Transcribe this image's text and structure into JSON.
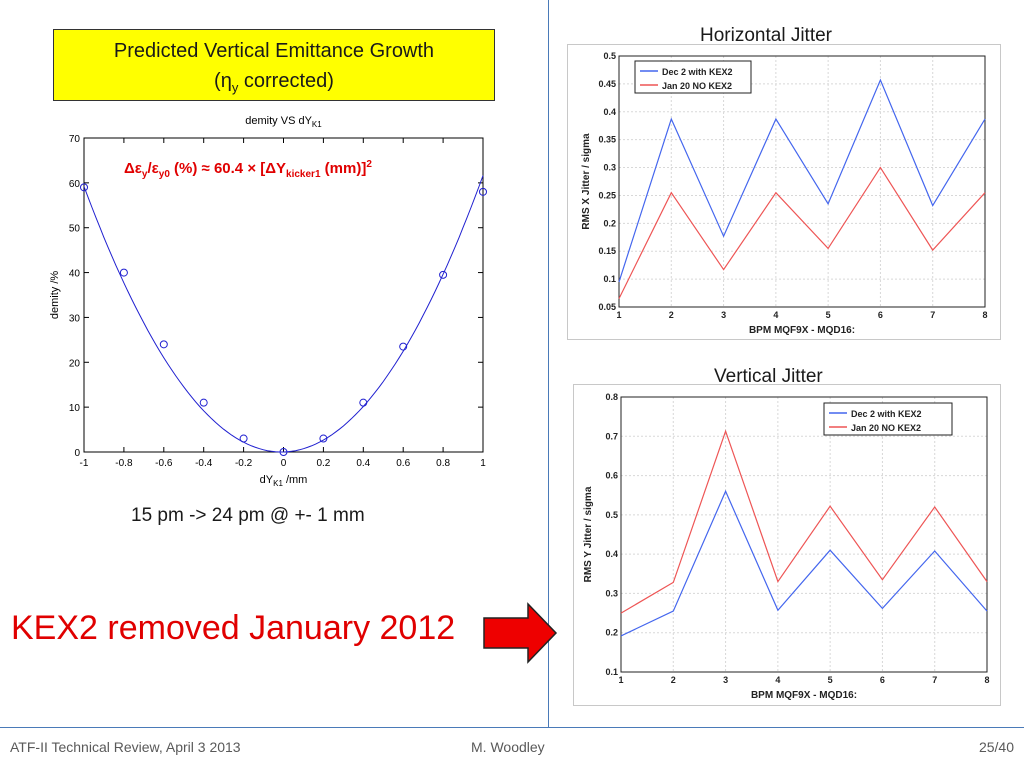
{
  "slide": {
    "title_line1": "Predicted Vertical Emittance Growth",
    "title_line2_pre": "(η",
    "title_line2_sub": "y",
    "title_line2_post": " corrected)",
    "caption": "15 pm -> 24 pm @ +- 1 mm",
    "kex_note": "KEX2 removed January 2012",
    "footer_left": "ATF-II Technical Review, April 3 2013",
    "footer_center": "M. Woodley",
    "footer_right": "25/40",
    "horizontal_title": "Horizontal Jitter",
    "vertical_title": "Vertical Jitter",
    "colors": {
      "title_box": "#ffff00",
      "kex_text": "#e00000",
      "arrow": "#ee0000",
      "blue": "#4466ee",
      "red": "#ee5555",
      "fit": "#2020d0",
      "formula": "#e00000"
    }
  },
  "chart_data": [
    {
      "type": "scatter",
      "title": "demity VS dY",
      "title_sub": "K1",
      "xlabel": "dY",
      "xlabel_sub": "K1",
      "xlabel_post": " /mm",
      "ylabel": "demity /%",
      "xlim": [
        -1,
        1
      ],
      "ylim": [
        0,
        70
      ],
      "xticks": [
        "-1",
        "-0.8",
        "-0.6",
        "-0.4",
        "-0.2",
        "0",
        "0.2",
        "0.4",
        "0.6",
        "0.8",
        "1"
      ],
      "yticks": [
        "0",
        "10",
        "20",
        "30",
        "40",
        "50",
        "60",
        "70"
      ],
      "points": [
        {
          "x": -1.0,
          "y": 59
        },
        {
          "x": -0.8,
          "y": 40
        },
        {
          "x": -0.6,
          "y": 24
        },
        {
          "x": -0.4,
          "y": 11
        },
        {
          "x": -0.2,
          "y": 3
        },
        {
          "x": 0.0,
          "y": 0
        },
        {
          "x": 0.2,
          "y": 3
        },
        {
          "x": 0.4,
          "y": 11
        },
        {
          "x": 0.6,
          "y": 23.5
        },
        {
          "x": 0.8,
          "y": 39.5
        },
        {
          "x": 1.0,
          "y": 58
        }
      ],
      "fit": {
        "coefficient": 60.4,
        "center": -0.01
      },
      "formula": {
        "p1": "Δε",
        "s1": "y",
        "p2": "/ε",
        "s2": "y0",
        "p3": " (%) ≈ 60.4 × [ΔY",
        "s3": "kicker1",
        "p4": " (mm)]",
        "sup": "2"
      }
    },
    {
      "type": "line",
      "title": "",
      "xlabel": "BPM MQF9X - MQD16:",
      "ylabel": "RMS X Jitter / sigma",
      "xlim": [
        1,
        8
      ],
      "ylim": [
        0.05,
        0.5
      ],
      "xticks": [
        "1",
        "2",
        "3",
        "4",
        "5",
        "6",
        "7",
        "8"
      ],
      "yticks": [
        "0.05",
        "0.1",
        "0.15",
        "0.2",
        "0.25",
        "0.3",
        "0.35",
        "0.4",
        "0.45",
        "0.5"
      ],
      "x": [
        1,
        2,
        3,
        4,
        5,
        6,
        7,
        8
      ],
      "series": [
        {
          "name": "Dec 2 with KEX2",
          "color": "#4466ee",
          "values": [
            0.095,
            0.387,
            0.177,
            0.387,
            0.235,
            0.457,
            0.232,
            0.387
          ]
        },
        {
          "name": "Jan 20 NO KEX2",
          "color": "#ee5555",
          "values": [
            0.065,
            0.255,
            0.117,
            0.255,
            0.155,
            0.3,
            0.152,
            0.255
          ]
        }
      ]
    },
    {
      "type": "line",
      "title": "",
      "xlabel": "BPM MQF9X - MQD16:",
      "ylabel": "RMS Y Jitter / sigma",
      "xlim": [
        1,
        8
      ],
      "ylim": [
        0.1,
        0.8
      ],
      "xticks": [
        "1",
        "2",
        "3",
        "4",
        "5",
        "6",
        "7",
        "8"
      ],
      "yticks": [
        "0.1",
        "0.2",
        "0.3",
        "0.4",
        "0.5",
        "0.6",
        "0.7",
        "0.8"
      ],
      "x": [
        1,
        2,
        3,
        4,
        5,
        6,
        7,
        8
      ],
      "series": [
        {
          "name": "Dec 2 with KEX2",
          "color": "#4466ee",
          "values": [
            0.192,
            0.255,
            0.56,
            0.257,
            0.41,
            0.262,
            0.408,
            0.255
          ]
        },
        {
          "name": "Jan 20 NO KEX2",
          "color": "#ee5555",
          "values": [
            0.25,
            0.328,
            0.713,
            0.33,
            0.522,
            0.335,
            0.52,
            0.33
          ]
        }
      ]
    }
  ]
}
